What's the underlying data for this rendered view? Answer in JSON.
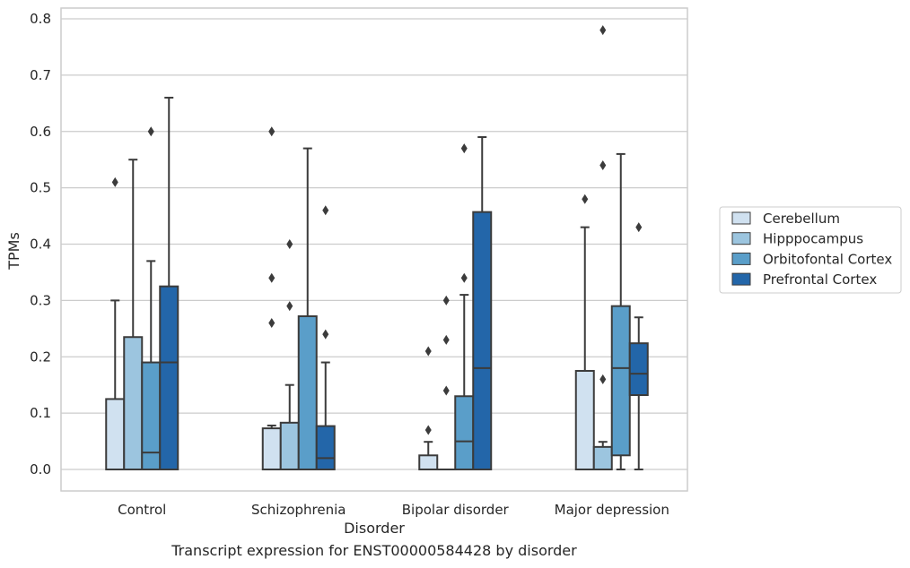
{
  "chart_data": {
    "type": "box",
    "title": "",
    "caption": "Transcript expression for ENST00000584428 by disorder",
    "xlabel": "Disorder",
    "ylabel": "TPMs",
    "ylim": [
      -0.038,
      0.82
    ],
    "yticks": [
      0.0,
      0.1,
      0.2,
      0.3,
      0.4,
      0.5,
      0.6,
      0.7,
      0.8
    ],
    "ytick_labels": [
      "0.0",
      "0.1",
      "0.2",
      "0.3",
      "0.4",
      "0.5",
      "0.6",
      "0.7",
      "0.8"
    ],
    "grid": true,
    "legend_position": "right",
    "categories": [
      "Control",
      "Schizophrenia",
      "Bipolar disorder",
      "Major depression"
    ],
    "series": [
      {
        "name": "Cerebellum",
        "color": "#d0e1f0",
        "boxes": [
          {
            "whisker_low": 0.0,
            "q1": 0.0,
            "median": 0.0,
            "q3": 0.125,
            "whisker_high": 0.3,
            "outliers": [
              0.51
            ]
          },
          {
            "whisker_low": 0.0,
            "q1": 0.0,
            "median": 0.0,
            "q3": 0.073,
            "whisker_high": 0.078,
            "outliers": [
              0.26,
              0.34,
              0.6
            ]
          },
          {
            "whisker_low": 0.0,
            "q1": 0.0,
            "median": 0.0,
            "q3": 0.025,
            "whisker_high": 0.049,
            "outliers": [
              0.07,
              0.21
            ]
          },
          {
            "whisker_low": 0.0,
            "q1": 0.0,
            "median": 0.0,
            "q3": 0.175,
            "whisker_high": 0.43,
            "outliers": [
              0.48
            ]
          }
        ]
      },
      {
        "name": "Hipppocampus",
        "color": "#9cc5df",
        "boxes": [
          {
            "whisker_low": 0.0,
            "q1": 0.0,
            "median": 0.0,
            "q3": 0.235,
            "whisker_high": 0.55,
            "outliers": []
          },
          {
            "whisker_low": 0.0,
            "q1": 0.0,
            "median": 0.0,
            "q3": 0.083,
            "whisker_high": 0.15,
            "outliers": [
              0.29,
              0.4
            ]
          },
          {
            "whisker_low": 0.0,
            "q1": 0.0,
            "median": 0.0,
            "q3": 0.0,
            "whisker_high": 0.0,
            "outliers": [
              0.14,
              0.23,
              0.3
            ]
          },
          {
            "whisker_low": 0.0,
            "q1": 0.0,
            "median": 0.0,
            "q3": 0.04,
            "whisker_high": 0.049,
            "outliers": [
              0.16,
              0.54,
              0.78
            ]
          }
        ]
      },
      {
        "name": "Orbitofontal Cortex",
        "color": "#5a9ec9",
        "boxes": [
          {
            "whisker_low": 0.0,
            "q1": 0.0,
            "median": 0.03,
            "q3": 0.19,
            "whisker_high": 0.37,
            "outliers": [
              0.6
            ]
          },
          {
            "whisker_low": 0.0,
            "q1": 0.0,
            "median": 0.0,
            "q3": 0.272,
            "whisker_high": 0.57,
            "outliers": []
          },
          {
            "whisker_low": 0.0,
            "q1": 0.0,
            "median": 0.05,
            "q3": 0.13,
            "whisker_high": 0.31,
            "outliers": [
              0.34,
              0.57
            ]
          },
          {
            "whisker_low": 0.0,
            "q1": 0.025,
            "median": 0.18,
            "q3": 0.29,
            "whisker_high": 0.56,
            "outliers": []
          }
        ]
      },
      {
        "name": "Prefrontal Cortex",
        "color": "#2366a9",
        "boxes": [
          {
            "whisker_low": 0.0,
            "q1": 0.0,
            "median": 0.19,
            "q3": 0.325,
            "whisker_high": 0.66,
            "outliers": []
          },
          {
            "whisker_low": 0.0,
            "q1": 0.0,
            "median": 0.02,
            "q3": 0.077,
            "whisker_high": 0.19,
            "outliers": [
              0.24,
              0.46
            ]
          },
          {
            "whisker_low": 0.0,
            "q1": 0.0,
            "median": 0.18,
            "q3": 0.457,
            "whisker_high": 0.59,
            "outliers": []
          },
          {
            "whisker_low": 0.0,
            "q1": 0.132,
            "median": 0.17,
            "q3": 0.224,
            "whisker_high": 0.27,
            "outliers": [
              0.43
            ]
          }
        ]
      }
    ]
  },
  "colors": {
    "grid": "#cccccc",
    "box_edge": "#3b3b3b",
    "frame": "#cccccc"
  }
}
